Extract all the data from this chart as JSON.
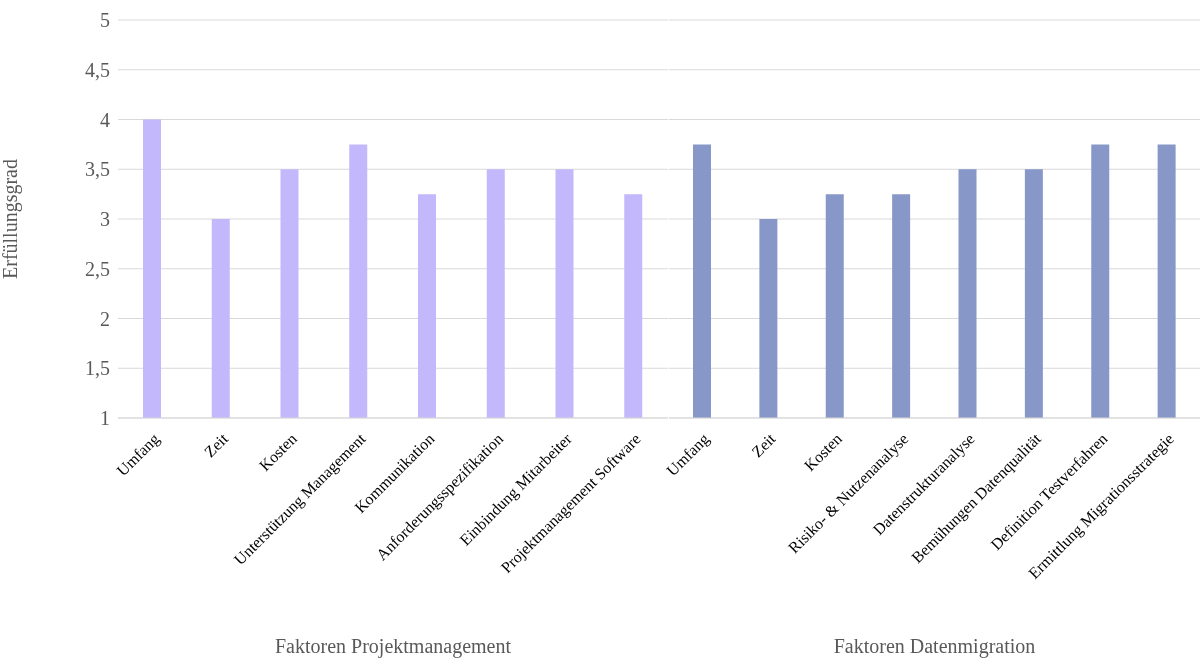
{
  "chart_data": [
    {
      "type": "bar",
      "categories": [
        "Umfang",
        "Zeit",
        "Kosten",
        "Unterstützung Management",
        "Kommunikation",
        "Anforderungsspezifikation",
        "Einbindung Mitarbeiter",
        "Projektmanagement Software"
      ],
      "values": [
        4,
        3,
        3.5,
        3.75,
        3.25,
        3.5,
        3.5,
        3.25
      ],
      "color": "#c3b8fc",
      "xlabel": "Faktoren Projektmanagement",
      "ylabel": "Erfüllungsgrad",
      "ylim": [
        1,
        5
      ],
      "yticks": [
        1,
        {
          "value": 1.5,
          "label": "1,5"
        },
        2,
        {
          "value": 2.5,
          "label": "2,5"
        },
        3,
        {
          "value": 3.5,
          "label": "3,5"
        },
        4,
        {
          "value": 4.5,
          "label": "4,5"
        },
        5
      ],
      "grid": "y"
    },
    {
      "type": "bar",
      "categories": [
        "Umfang",
        "Zeit",
        "Kosten",
        "Risiko- & Nutzenanalyse",
        "Datenstrukturanalyse",
        "Bemühungen Datenqualität",
        "Definition Testverfahren",
        "Ermittlung Migrationsstrategie"
      ],
      "values": [
        3.75,
        3,
        3.25,
        3.25,
        3.5,
        3.5,
        3.75,
        3.75
      ],
      "color": "#8797c8",
      "xlabel": "Faktoren Datenmigration",
      "ylim": [
        1,
        5
      ],
      "yticks": [
        {
          "value": 1,
          "label": null
        },
        {
          "value": 1.5,
          "label": null
        },
        {
          "value": 2,
          "label": null
        },
        {
          "value": 2.5,
          "label": null
        },
        {
          "value": 3,
          "label": null
        },
        {
          "value": 3.5,
          "label": null
        },
        {
          "value": 4,
          "label": null
        },
        {
          "value": 4.5,
          "label": null
        },
        {
          "value": 5,
          "label": null
        }
      ],
      "grid": "y",
      "tick_labels": "x"
    }
  ]
}
